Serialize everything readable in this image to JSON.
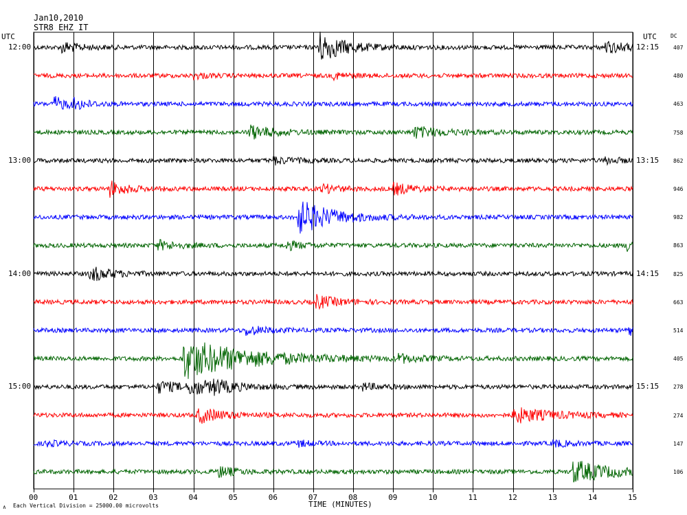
{
  "header": {
    "date": "Jan10,2010",
    "station": "STR8 EHZ IT"
  },
  "chart_data": {
    "type": "line",
    "title": "",
    "xlabel": "TIME (MINUTES)",
    "xlim": [
      0,
      15
    ],
    "tick_labels": [
      "00",
      "01",
      "02",
      "03",
      "04",
      "05",
      "06",
      "07",
      "08",
      "09",
      "10",
      "11",
      "12",
      "13",
      "14",
      "15"
    ],
    "utc_left": "UTC",
    "utc_right": "UTC",
    "dc_label": "DC",
    "footnote": "Each Vertical Division = 25000.00 microvolts",
    "footnote_mark": "∧",
    "trace_colors": [
      "#000000",
      "#ff0000",
      "#0000ff",
      "#006400"
    ],
    "traces": [
      {
        "left": "12:00",
        "right": "12:15",
        "dc": "407",
        "color": "#000000",
        "events": [
          [
            0.7,
            2.5,
            0.4
          ],
          [
            7.1,
            7.5,
            0.6
          ],
          [
            14.3,
            2.5,
            0.6
          ]
        ]
      },
      {
        "left": "",
        "right": "",
        "dc": "480",
        "color": "#ff0000",
        "events": [
          [
            4.0,
            1.3,
            0.3
          ],
          [
            7.5,
            1.3,
            0.4
          ]
        ]
      },
      {
        "left": "",
        "right": "",
        "dc": "463",
        "color": "#0000ff",
        "events": [
          [
            0.5,
            3.0,
            0.4
          ],
          [
            1.0,
            2.0,
            0.3
          ]
        ]
      },
      {
        "left": "",
        "right": "",
        "dc": "758",
        "color": "#006400",
        "events": [
          [
            5.4,
            3.0,
            0.6
          ],
          [
            9.5,
            2.5,
            0.7
          ]
        ]
      },
      {
        "left": "13:00",
        "right": "13:15",
        "dc": "862",
        "color": "#000000",
        "events": [
          [
            6.0,
            1.5,
            0.5
          ],
          [
            14.3,
            1.3,
            0.4
          ]
        ]
      },
      {
        "left": "",
        "right": "",
        "dc": "946",
        "color": "#ff0000",
        "events": [
          [
            1.9,
            3.5,
            0.4
          ],
          [
            7.2,
            2.0,
            0.4
          ],
          [
            9.0,
            2.5,
            0.5
          ]
        ]
      },
      {
        "left": "",
        "right": "",
        "dc": "982",
        "color": "#0000ff",
        "events": [
          [
            6.6,
            8.0,
            0.8
          ]
        ]
      },
      {
        "left": "",
        "right": "",
        "dc": "863",
        "color": "#006400",
        "events": [
          [
            3.1,
            2.0,
            0.5
          ],
          [
            6.3,
            2.0,
            0.4
          ],
          [
            14.85,
            3.0,
            0.3
          ]
        ]
      },
      {
        "left": "14:00",
        "right": "14:15",
        "dc": "825",
        "color": "#000000",
        "events": [
          [
            1.4,
            3.5,
            0.5
          ]
        ]
      },
      {
        "left": "",
        "right": "",
        "dc": "663",
        "color": "#ff0000",
        "events": [
          [
            7.05,
            3.0,
            0.5
          ]
        ]
      },
      {
        "left": "",
        "right": "",
        "dc": "514",
        "color": "#0000ff",
        "events": [
          [
            5.3,
            2.0,
            0.5
          ],
          [
            14.9,
            2.0,
            0.3
          ]
        ]
      },
      {
        "left": "",
        "right": "",
        "dc": "405",
        "color": "#006400",
        "events": [
          [
            3.75,
            9.0,
            1.6
          ],
          [
            9.1,
            1.8,
            0.4
          ]
        ]
      },
      {
        "left": "15:00",
        "right": "15:15",
        "dc": "278",
        "color": "#000000",
        "events": [
          [
            3.1,
            2.5,
            0.6
          ],
          [
            3.9,
            3.0,
            0.8
          ],
          [
            4.5,
            2.0,
            0.4
          ],
          [
            8.2,
            1.5,
            0.4
          ]
        ]
      },
      {
        "left": "",
        "right": "",
        "dc": "274",
        "color": "#ff0000",
        "events": [
          [
            4.1,
            3.5,
            0.6
          ],
          [
            12.0,
            3.5,
            0.9
          ]
        ]
      },
      {
        "left": "",
        "right": "",
        "dc": "147",
        "color": "#0000ff",
        "events": [
          [
            0.3,
            1.3,
            0.3
          ],
          [
            6.6,
            1.3,
            0.3
          ],
          [
            13.0,
            1.4,
            0.4
          ]
        ]
      },
      {
        "left": "",
        "right": "",
        "dc": "106",
        "color": "#006400",
        "events": [
          [
            4.6,
            2.5,
            0.4
          ],
          [
            13.5,
            5.0,
            0.9
          ]
        ]
      }
    ]
  }
}
